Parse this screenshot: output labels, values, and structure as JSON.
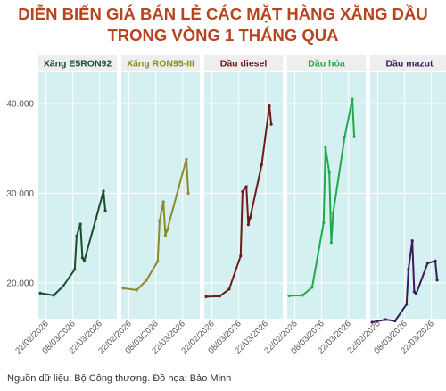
{
  "title": {
    "line1": "DIỄN BIẾN GIÁ BÁN LẺ CÁC MẶT HÀNG XĂNG DẦU",
    "line2": "TRONG VÒNG 1 THÁNG QUA"
  },
  "source": "Nguồn dữ liệu: Bộ Công thương. Đồ họa: Bảo Minh",
  "colors": {
    "title": "#b8431f",
    "panel_bg": "#d4f0f0",
    "label_bg": "#eeeeee",
    "grid": "#ffffff"
  },
  "chart_data": {
    "type": "line",
    "layout": "small-multiples",
    "ylim": [
      16000,
      43500
    ],
    "yticks": [
      20000,
      30000,
      40000
    ],
    "ytick_labels": [
      "20.000",
      "30.000",
      "40.000"
    ],
    "xlim": [
      "2026-02-18",
      "2026-03-31"
    ],
    "xticks": [
      "2026-02-22",
      "2026-03-08",
      "2026-03-22"
    ],
    "xtick_labels": [
      "22/02/2026",
      "08/03/2026",
      "22/03/2026"
    ],
    "grid": true,
    "legend": "none",
    "series": [
      {
        "name": "Xăng E5RON92",
        "color": "#1b4d2e",
        "points": [
          [
            "2026-02-19",
            18850
          ],
          [
            "2026-02-26",
            18600
          ],
          [
            "2026-03-03",
            19650
          ],
          [
            "2026-03-09",
            21500
          ],
          [
            "2026-03-10",
            25200
          ],
          [
            "2026-03-12",
            26550
          ],
          [
            "2026-03-13",
            22800
          ],
          [
            "2026-03-14",
            22450
          ],
          [
            "2026-03-20",
            27100
          ],
          [
            "2026-03-24",
            30250
          ],
          [
            "2026-03-25",
            28050
          ]
        ]
      },
      {
        "name": "Xăng RON95-III",
        "color": "#8c8a28",
        "points": [
          [
            "2026-02-19",
            19400
          ],
          [
            "2026-02-26",
            19200
          ],
          [
            "2026-03-03",
            20250
          ],
          [
            "2026-03-09",
            22400
          ],
          [
            "2026-03-10",
            26900
          ],
          [
            "2026-03-12",
            29050
          ],
          [
            "2026-03-13",
            25300
          ],
          [
            "2026-03-14",
            25900
          ],
          [
            "2026-03-20",
            30700
          ],
          [
            "2026-03-24",
            33800
          ],
          [
            "2026-03-25",
            30000
          ]
        ]
      },
      {
        "name": "Dầu diesel",
        "color": "#6e1a1a",
        "points": [
          [
            "2026-02-19",
            18450
          ],
          [
            "2026-02-26",
            18500
          ],
          [
            "2026-03-03",
            19300
          ],
          [
            "2026-03-09",
            23000
          ],
          [
            "2026-03-10",
            30200
          ],
          [
            "2026-03-12",
            30750
          ],
          [
            "2026-03-13",
            26500
          ],
          [
            "2026-03-14",
            27300
          ],
          [
            "2026-03-20",
            33200
          ],
          [
            "2026-03-24",
            39750
          ],
          [
            "2026-03-25",
            37700
          ]
        ]
      },
      {
        "name": "Dầu hỏa",
        "color": "#22a84a",
        "points": [
          [
            "2026-02-19",
            18550
          ],
          [
            "2026-02-26",
            18600
          ],
          [
            "2026-03-03",
            19500
          ],
          [
            "2026-03-09",
            26700
          ],
          [
            "2026-03-10",
            35100
          ],
          [
            "2026-03-12",
            32300
          ],
          [
            "2026-03-13",
            24500
          ],
          [
            "2026-03-14",
            27800
          ],
          [
            "2026-03-20",
            36300
          ],
          [
            "2026-03-24",
            40500
          ],
          [
            "2026-03-25",
            36300
          ]
        ]
      },
      {
        "name": "Dầu mazut",
        "color": "#3e1a5c",
        "points": [
          [
            "2026-02-19",
            15600
          ],
          [
            "2026-02-26",
            15900
          ],
          [
            "2026-03-03",
            15750
          ],
          [
            "2026-03-09",
            17600
          ],
          [
            "2026-03-10",
            21500
          ],
          [
            "2026-03-12",
            24700
          ],
          [
            "2026-03-13",
            19000
          ],
          [
            "2026-03-14",
            18750
          ],
          [
            "2026-03-20",
            22200
          ],
          [
            "2026-03-24",
            22450
          ],
          [
            "2026-03-25",
            20300
          ]
        ]
      }
    ]
  }
}
